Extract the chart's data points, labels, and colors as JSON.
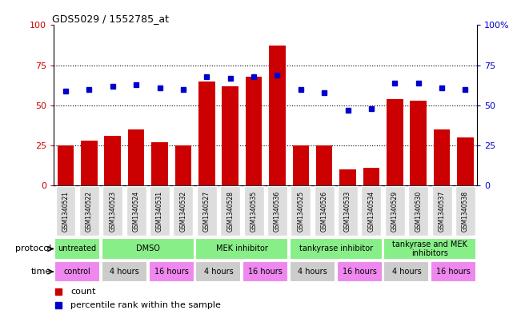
{
  "title": "GDS5029 / 1552785_at",
  "samples": [
    "GSM1340521",
    "GSM1340522",
    "GSM1340523",
    "GSM1340524",
    "GSM1340531",
    "GSM1340532",
    "GSM1340527",
    "GSM1340528",
    "GSM1340535",
    "GSM1340536",
    "GSM1340525",
    "GSM1340526",
    "GSM1340533",
    "GSM1340534",
    "GSM1340529",
    "GSM1340530",
    "GSM1340537",
    "GSM1340538"
  ],
  "bar_values": [
    25,
    28,
    31,
    35,
    27,
    25,
    65,
    62,
    68,
    87,
    25,
    25,
    10,
    11,
    54,
    53,
    35,
    30
  ],
  "dot_values": [
    59,
    60,
    62,
    63,
    61,
    60,
    68,
    67,
    68,
    69,
    60,
    58,
    47,
    48,
    64,
    64,
    61,
    60
  ],
  "bar_color": "#cc0000",
  "dot_color": "#0000cc",
  "ylim": [
    0,
    100
  ],
  "yticks": [
    0,
    25,
    50,
    75,
    100
  ],
  "grid_lines": [
    25,
    50,
    75
  ],
  "n_bars": 18,
  "protocol_color": "#88ee88",
  "time_color_pink": "#ee88ee",
  "time_color_gray": "#cccccc",
  "legend_count": "count",
  "legend_pct": "percentile rank within the sample",
  "proto_data": [
    [
      0,
      2,
      "untreated"
    ],
    [
      2,
      6,
      "DMSO"
    ],
    [
      6,
      10,
      "MEK inhibitor"
    ],
    [
      10,
      14,
      "tankyrase inhibitor"
    ],
    [
      14,
      18,
      "tankyrase and MEK\ninhibitors"
    ]
  ],
  "time_data": [
    [
      0,
      2,
      "control",
      "#ee88ee"
    ],
    [
      2,
      4,
      "4 hours",
      "#cccccc"
    ],
    [
      4,
      6,
      "16 hours",
      "#ee88ee"
    ],
    [
      6,
      8,
      "4 hours",
      "#cccccc"
    ],
    [
      8,
      10,
      "16 hours",
      "#ee88ee"
    ],
    [
      10,
      12,
      "4 hours",
      "#cccccc"
    ],
    [
      12,
      14,
      "16 hours",
      "#ee88ee"
    ],
    [
      14,
      16,
      "4 hours",
      "#cccccc"
    ],
    [
      16,
      18,
      "16 hours",
      "#ee88ee"
    ]
  ]
}
